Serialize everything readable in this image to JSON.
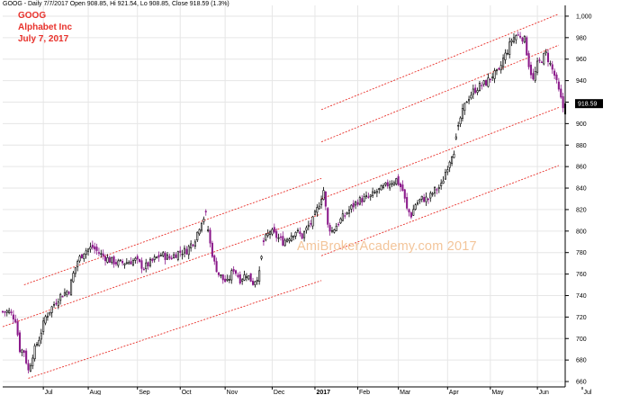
{
  "header": {
    "info": "GOOG - Daily 7/7/2017 Open 908.85, Hi 921.54, Lo 908.85, Close 918.59 (1.3%)",
    "symbol": "GOOG",
    "company": "Alphabet Inc",
    "date": "July 7, 2017"
  },
  "watermark": "AmiBrokerAcademy.com  2017",
  "colors": {
    "up": "#000000",
    "down": "#8b1a8b",
    "channel": "#e8312b",
    "grid": "#e6e6e6",
    "title": "#e8312b",
    "watermark": "#f3c59a",
    "last_price_bg": "#000000"
  },
  "chart_data": {
    "type": "candlestick",
    "title": "GOOG",
    "ylim": [
      655,
      1010
    ],
    "yticks": [
      660,
      680,
      700,
      720,
      740,
      760,
      780,
      800,
      820,
      840,
      860,
      880,
      900,
      920,
      940,
      960,
      980,
      1000
    ],
    "ytick_labels": [
      "660",
      "680",
      "700",
      "720",
      "740",
      "760",
      "780",
      "800",
      "820",
      "840",
      "860",
      "880",
      "900",
      "920",
      "940",
      "960",
      "980",
      "1,000"
    ],
    "xlim": [
      0,
      263
    ],
    "x_ticks": [
      {
        "x": 19,
        "label": "Jul",
        "bold": false
      },
      {
        "x": 40,
        "label": "Aug",
        "bold": false
      },
      {
        "x": 63,
        "label": "Sep",
        "bold": false
      },
      {
        "x": 83,
        "label": "Oct",
        "bold": false
      },
      {
        "x": 104,
        "label": "Nov",
        "bold": false
      },
      {
        "x": 126,
        "label": "Dec",
        "bold": false
      },
      {
        "x": 146,
        "label": "2017",
        "bold": true
      },
      {
        "x": 166,
        "label": "Feb",
        "bold": false
      },
      {
        "x": 185,
        "label": "Mar",
        "bold": false
      },
      {
        "x": 208,
        "label": "Apr",
        "bold": false
      },
      {
        "x": 228,
        "label": "May",
        "bold": false
      },
      {
        "x": 250,
        "label": "Jun",
        "bold": false
      },
      {
        "x": 271,
        "label": "Jul",
        "bold": false
      }
    ],
    "anchors": [
      [
        0,
        725
      ],
      [
        3,
        725
      ],
      [
        6,
        718
      ],
      [
        8,
        690
      ],
      [
        10,
        688
      ],
      [
        12,
        670
      ],
      [
        14,
        685
      ],
      [
        17,
        700
      ],
      [
        20,
        720
      ],
      [
        24,
        732
      ],
      [
        27,
        740
      ],
      [
        31,
        745
      ],
      [
        33,
        760
      ],
      [
        35,
        772
      ],
      [
        38,
        781
      ],
      [
        42,
        785
      ],
      [
        46,
        778
      ],
      [
        50,
        773
      ],
      [
        54,
        770
      ],
      [
        58,
        771
      ],
      [
        62,
        773
      ],
      [
        66,
        766
      ],
      [
        70,
        772
      ],
      [
        74,
        778
      ],
      [
        78,
        775
      ],
      [
        82,
        780
      ],
      [
        86,
        782
      ],
      [
        90,
        793
      ],
      [
        93,
        810
      ],
      [
        95,
        815
      ],
      [
        97,
        788
      ],
      [
        99,
        770
      ],
      [
        101,
        760
      ],
      [
        103,
        755
      ],
      [
        105,
        752
      ],
      [
        108,
        765
      ],
      [
        111,
        755
      ],
      [
        114,
        760
      ],
      [
        117,
        752
      ],
      [
        120,
        760
      ],
      [
        122,
        790
      ],
      [
        125,
        800
      ],
      [
        128,
        795
      ],
      [
        131,
        790
      ],
      [
        134,
        795
      ],
      [
        137,
        800
      ],
      [
        140,
        795
      ],
      [
        143,
        805
      ],
      [
        145,
        810
      ],
      [
        147,
        820
      ],
      [
        150,
        838
      ],
      [
        152,
        805
      ],
      [
        154,
        800
      ],
      [
        157,
        808
      ],
      [
        160,
        815
      ],
      [
        163,
        822
      ],
      [
        166,
        828
      ],
      [
        169,
        830
      ],
      [
        172,
        832
      ],
      [
        175,
        837
      ],
      [
        178,
        840
      ],
      [
        181,
        845
      ],
      [
        184,
        848
      ],
      [
        187,
        838
      ],
      [
        189,
        820
      ],
      [
        191,
        815
      ],
      [
        193,
        825
      ],
      [
        196,
        830
      ],
      [
        199,
        830
      ],
      [
        202,
        838
      ],
      [
        205,
        842
      ],
      [
        207,
        855
      ],
      [
        210,
        872
      ],
      [
        211,
        875
      ],
      [
        214,
        905
      ],
      [
        217,
        922
      ],
      [
        220,
        930
      ],
      [
        223,
        935
      ],
      [
        226,
        938
      ],
      [
        229,
        945
      ],
      [
        232,
        948
      ],
      [
        234,
        960
      ],
      [
        236,
        968
      ],
      [
        238,
        978
      ],
      [
        240,
        982
      ],
      [
        242,
        982
      ],
      [
        244,
        978
      ],
      [
        246,
        955
      ],
      [
        248,
        940
      ],
      [
        250,
        955
      ],
      [
        252,
        960
      ],
      [
        254,
        965
      ],
      [
        256,
        955
      ],
      [
        258,
        945
      ],
      [
        260,
        930
      ],
      [
        262,
        915
      ],
      [
        263,
        918.59
      ]
    ],
    "channel_lines": [
      {
        "x": [
          10,
          149
        ],
        "y": [
          750,
          849
        ]
      },
      {
        "x": [
          0,
          149
        ],
        "y": [
          711,
          816
        ]
      },
      {
        "x": [
          12,
          149
        ],
        "y": [
          663,
          754
        ]
      },
      {
        "x": [
          149,
          260
        ],
        "y": [
          913,
          1002
        ]
      },
      {
        "x": [
          149,
          260
        ],
        "y": [
          883,
          973
        ]
      },
      {
        "x": [
          149,
          260
        ],
        "y": [
          830,
          915
        ]
      },
      {
        "x": [
          149,
          260
        ],
        "y": [
          777,
          861
        ]
      }
    ],
    "gaps": [
      [
        94,
        97
      ],
      [
        120,
        123
      ],
      [
        211,
        214
      ]
    ],
    "last_price": 918.59,
    "last_price_label": "918.59"
  }
}
